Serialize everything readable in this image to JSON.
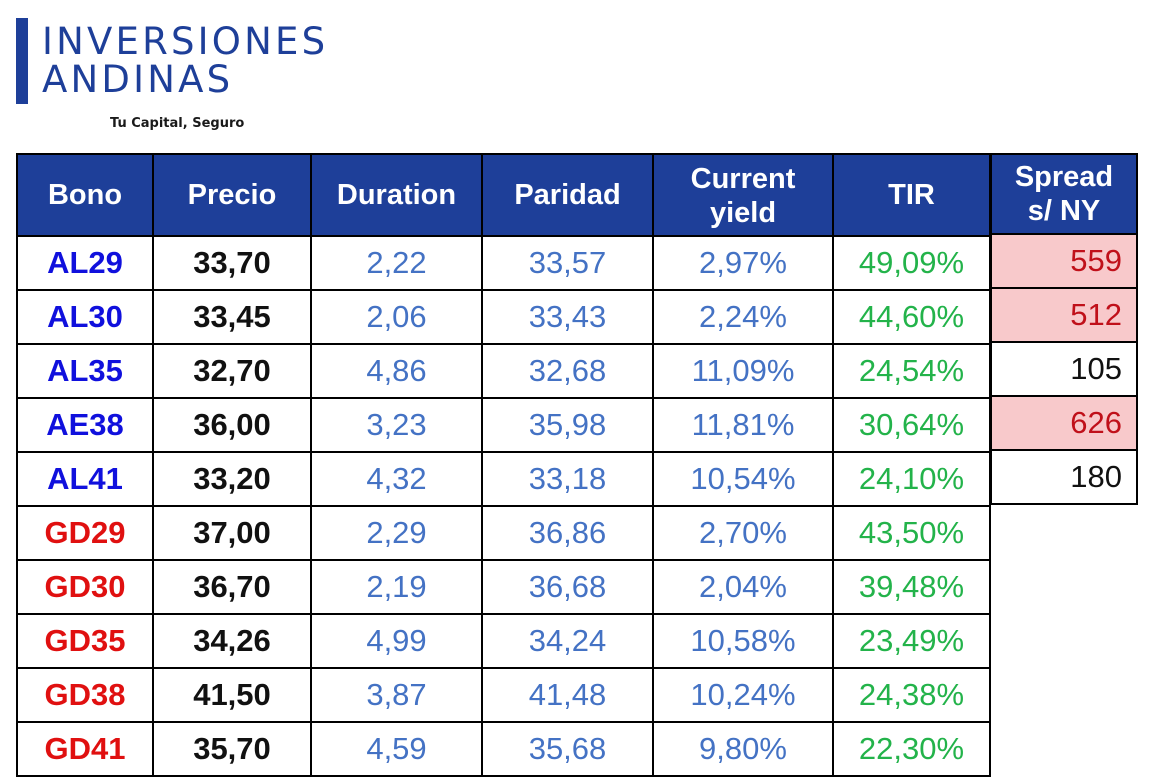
{
  "logo": {
    "line1": "INVERSIONES",
    "line2": "ANDINAS",
    "tagline": "Tu Capital, Seguro",
    "brand_color": "#1e3f99"
  },
  "table": {
    "headers": {
      "bono": "Bono",
      "precio": "Precio",
      "duration": "Duration",
      "paridad": "Paridad",
      "current_yield_1": "Current",
      "current_yield_2": "yield",
      "tir": "TIR"
    },
    "rows": [
      {
        "bono": "AL29",
        "precio": "33,70",
        "duration": "2,22",
        "paridad": "33,57",
        "current_yield": "2,97%",
        "tir": "49,09%"
      },
      {
        "bono": "AL30",
        "precio": "33,45",
        "duration": "2,06",
        "paridad": "33,43",
        "current_yield": "2,24%",
        "tir": "44,60%"
      },
      {
        "bono": "AL35",
        "precio": "32,70",
        "duration": "4,86",
        "paridad": "32,68",
        "current_yield": "11,09%",
        "tir": "24,54%"
      },
      {
        "bono": "AE38",
        "precio": "36,00",
        "duration": "3,23",
        "paridad": "35,98",
        "current_yield": "11,81%",
        "tir": "30,64%"
      },
      {
        "bono": "AL41",
        "precio": "33,20",
        "duration": "4,32",
        "paridad": "33,18",
        "current_yield": "10,54%",
        "tir": "24,10%"
      },
      {
        "bono": "GD29",
        "precio": "37,00",
        "duration": "2,29",
        "paridad": "36,86",
        "current_yield": "2,70%",
        "tir": "43,50%"
      },
      {
        "bono": "GD30",
        "precio": "36,70",
        "duration": "2,19",
        "paridad": "36,68",
        "current_yield": "2,04%",
        "tir": "39,48%"
      },
      {
        "bono": "GD35",
        "precio": "34,26",
        "duration": "4,99",
        "paridad": "34,24",
        "current_yield": "10,58%",
        "tir": "23,49%"
      },
      {
        "bono": "GD38",
        "precio": "41,50",
        "duration": "3,87",
        "paridad": "41,48",
        "current_yield": "10,24%",
        "tir": "24,38%"
      },
      {
        "bono": "GD41",
        "precio": "35,70",
        "duration": "4,59",
        "paridad": "35,68",
        "current_yield": "9,80%",
        "tir": "22,30%"
      }
    ]
  },
  "spread": {
    "header_1": "Spread",
    "header_2": "s/ NY",
    "values": [
      "559",
      "512",
      "105",
      "626",
      "180"
    ],
    "highlight_color": "#f8c9cb"
  },
  "colors": {
    "header_bg": "#1e3f99",
    "al_bono": "#1010dd",
    "gd_bono": "#e01010",
    "numbers": "#4472c4",
    "tir": "#23b34a"
  }
}
